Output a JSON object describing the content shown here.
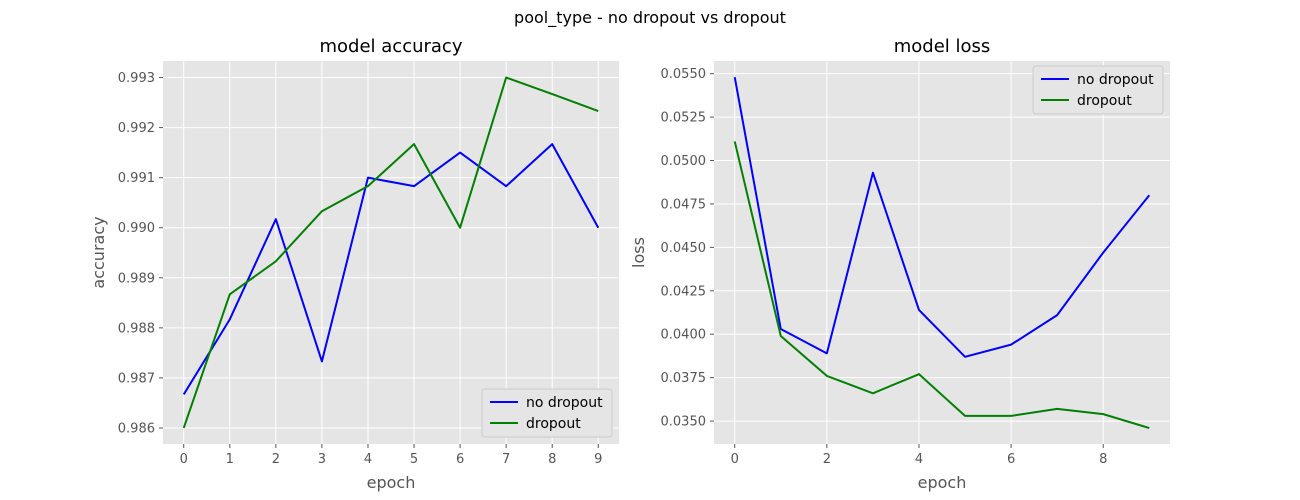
{
  "figure": {
    "suptitle": "pool_type - no dropout vs dropout",
    "colors": {
      "no_dropout": "#0000ff",
      "dropout": "#008000",
      "background": "#e5e5e5",
      "grid": "#ffffff"
    }
  },
  "chart_data": [
    {
      "type": "line",
      "title": "model accuracy",
      "xlabel": "epoch",
      "ylabel": "accuracy",
      "x": [
        0,
        1,
        2,
        3,
        4,
        5,
        6,
        7,
        8,
        9
      ],
      "xticks": [
        "0",
        "1",
        "2",
        "3",
        "4",
        "5",
        "6",
        "7",
        "8",
        "9"
      ],
      "yticks": [
        "0.986",
        "0.987",
        "0.988",
        "0.989",
        "0.990",
        "0.991",
        "0.992",
        "0.993"
      ],
      "xlim": [
        -0.45,
        9.45
      ],
      "ylim": [
        0.98568,
        0.99333
      ],
      "grid": true,
      "legend_position": "lower-right",
      "series": [
        {
          "name": "no dropout",
          "color": "#0000ff",
          "values": [
            0.98667,
            0.98817,
            0.99017,
            0.98733,
            0.991,
            0.99083,
            0.9915,
            0.99083,
            0.99167,
            0.99
          ]
        },
        {
          "name": "dropout",
          "color": "#008000",
          "values": [
            0.986,
            0.98867,
            0.98933,
            0.99033,
            0.99083,
            0.99167,
            0.99,
            0.993,
            0.99267,
            0.99233
          ]
        }
      ]
    },
    {
      "type": "line",
      "title": "model loss",
      "xlabel": "epoch",
      "ylabel": "loss",
      "x": [
        0,
        1,
        2,
        3,
        4,
        5,
        6,
        7,
        8,
        9
      ],
      "xticks": [
        "0",
        "2",
        "4",
        "6",
        "8"
      ],
      "yticks": [
        "0.0350",
        "0.0375",
        "0.0400",
        "0.0425",
        "0.0450",
        "0.0475",
        "0.0500",
        "0.0525",
        "0.0550"
      ],
      "xlim": [
        -0.45,
        9.45
      ],
      "ylim": [
        0.03368,
        0.05573
      ],
      "grid": true,
      "legend_position": "upper-right",
      "series": [
        {
          "name": "no dropout",
          "color": "#0000ff",
          "values": [
            0.0548,
            0.0403,
            0.0389,
            0.0493,
            0.0414,
            0.0387,
            0.0394,
            0.0411,
            0.0447,
            0.048
          ]
        },
        {
          "name": "dropout",
          "color": "#008000",
          "values": [
            0.0511,
            0.0399,
            0.0376,
            0.0366,
            0.0377,
            0.0353,
            0.0353,
            0.0357,
            0.0354,
            0.0346
          ]
        }
      ]
    }
  ]
}
